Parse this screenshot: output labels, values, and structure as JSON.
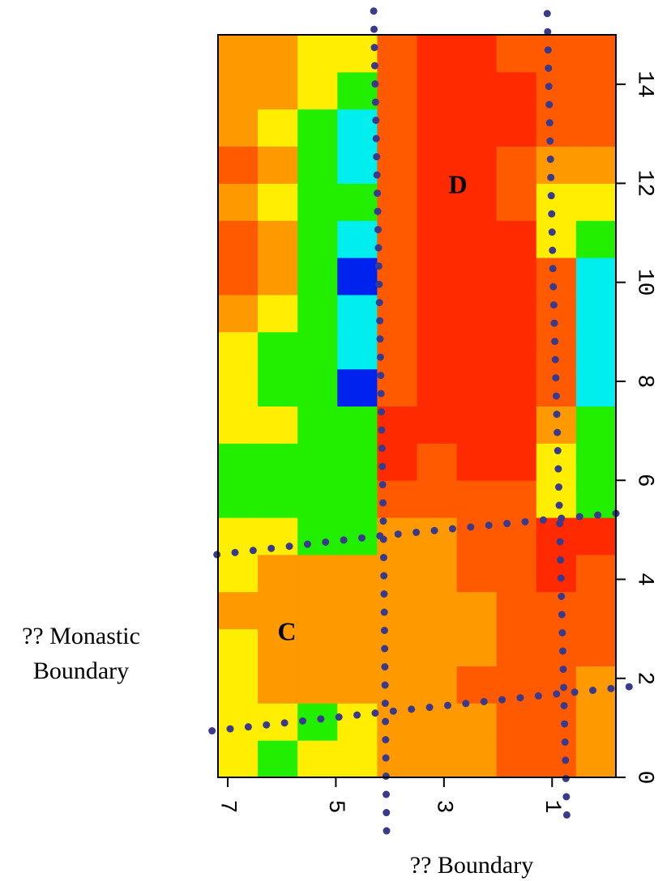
{
  "chart_data": {
    "type": "heatmap",
    "xlim": [
      7.18,
      -0.18
    ],
    "ylim": [
      0,
      15
    ],
    "xticks": [
      7,
      5,
      3,
      1
    ],
    "yticks": [
      0,
      2,
      4,
      6,
      8,
      10,
      12,
      14
    ],
    "colorscale": [
      "#ff2a00",
      "#ff5a00",
      "#ff9900",
      "#ffee00",
      "#22ee00",
      "#00eeee",
      "#0022ee"
    ],
    "z": [
      [
        3,
        4,
        3,
        3,
        2,
        2,
        2,
        1,
        1,
        2
      ],
      [
        3,
        3,
        4,
        3,
        2,
        2,
        2,
        1,
        1,
        2
      ],
      [
        3,
        2,
        2,
        2,
        2,
        2,
        1,
        1,
        1,
        2
      ],
      [
        3,
        2,
        2,
        2,
        2,
        2,
        2,
        1,
        1,
        1
      ],
      [
        2,
        2,
        2,
        2,
        2,
        2,
        2,
        1,
        1,
        1
      ],
      [
        3,
        2,
        2,
        2,
        2,
        2,
        1,
        1,
        0,
        1
      ],
      [
        3,
        3,
        4,
        4,
        2,
        2,
        1,
        1,
        0,
        0
      ],
      [
        4,
        4,
        4,
        4,
        1,
        1,
        1,
        1,
        3,
        4
      ],
      [
        4,
        4,
        4,
        4,
        0,
        1,
        0,
        0,
        3,
        4
      ],
      [
        3,
        3,
        4,
        4,
        0,
        0,
        0,
        0,
        2,
        4
      ],
      [
        3,
        4,
        4,
        6,
        1,
        0,
        0,
        0,
        1,
        5
      ],
      [
        3,
        4,
        4,
        5,
        1,
        0,
        0,
        0,
        1,
        5
      ],
      [
        2,
        3,
        4,
        5,
        1,
        0,
        0,
        0,
        1,
        5
      ],
      [
        1,
        2,
        4,
        6,
        1,
        0,
        0,
        0,
        1,
        5
      ],
      [
        1,
        2,
        4,
        5,
        1,
        0,
        0,
        0,
        3,
        4
      ],
      [
        2,
        3,
        4,
        4,
        1,
        0,
        0,
        1,
        3,
        3
      ],
      [
        1,
        2,
        4,
        5,
        1,
        0,
        0,
        1,
        2,
        2
      ],
      [
        2,
        3,
        4,
        5,
        1,
        0,
        0,
        0,
        1,
        1
      ],
      [
        2,
        2,
        3,
        4,
        1,
        0,
        0,
        0,
        1,
        1
      ],
      [
        2,
        2,
        3,
        3,
        1,
        0,
        0,
        1,
        1,
        1
      ]
    ],
    "boundaries": {
      "color": "#3a3a8c",
      "lines": [
        {
          "x": [
            4.3,
            4.2,
            4.12,
            4.06
          ],
          "y": [
            15.48,
            10,
            5,
            -1.25
          ]
        },
        {
          "x": [
            1.09,
            0.98,
            0.88,
            0.72
          ],
          "y": [
            15.43,
            10,
            6,
            -1.12
          ]
        },
        {
          "x": [
            7.2,
            4.17,
            0.87,
            -0.38
          ],
          "y": [
            4.5,
            4.88,
            5.23,
            5.35
          ]
        },
        {
          "x": [
            7.29,
            4.09,
            0.87,
            -0.7
          ],
          "y": [
            0.94,
            1.32,
            1.69,
            1.86
          ]
        }
      ]
    },
    "annotations": [
      "D",
      "C",
      "?? Monastic",
      "Boundary",
      "?? Boundary"
    ]
  }
}
